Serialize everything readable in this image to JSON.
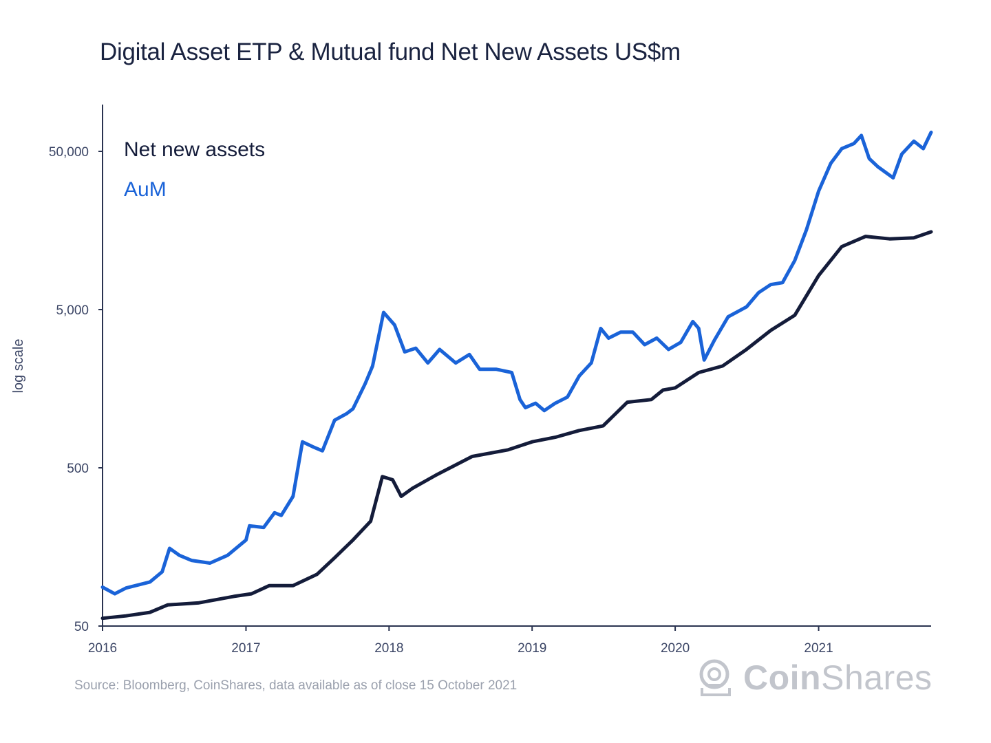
{
  "chart_data": {
    "type": "line",
    "title": "Digital Asset ETP & Mutual fund Net New Assets US$m",
    "ylabel": "log scale",
    "xlabel": "",
    "yscale": "log",
    "ylim": [
      50,
      80000
    ],
    "xlim": [
      "2016-01-01",
      "2021-10-15"
    ],
    "x_ticks": [
      "2016",
      "2017",
      "2018",
      "2019",
      "2020",
      "2021"
    ],
    "y_ticks": [
      {
        "value": 50,
        "label": "50"
      },
      {
        "value": 500,
        "label": "500"
      },
      {
        "value": 5000,
        "label": "5,000"
      },
      {
        "value": 50000,
        "label": "50,000"
      }
    ],
    "legend_placement": "top-left",
    "series": [
      {
        "name": "Net new assets",
        "color": "#141c3a",
        "points": [
          [
            "2016-01-01",
            56
          ],
          [
            "2016-03-01",
            58
          ],
          [
            "2016-05-01",
            61
          ],
          [
            "2016-06-15",
            68
          ],
          [
            "2016-09-01",
            70
          ],
          [
            "2016-12-01",
            77
          ],
          [
            "2017-01-15",
            80
          ],
          [
            "2017-03-01",
            90
          ],
          [
            "2017-05-01",
            90
          ],
          [
            "2017-07-01",
            106
          ],
          [
            "2017-08-15",
            135
          ],
          [
            "2017-10-01",
            175
          ],
          [
            "2017-11-15",
            230
          ],
          [
            "2017-12-15",
            440
          ],
          [
            "2018-01-10",
            420
          ],
          [
            "2018-02-01",
            330
          ],
          [
            "2018-03-01",
            370
          ],
          [
            "2018-05-01",
            450
          ],
          [
            "2018-08-01",
            590
          ],
          [
            "2018-11-01",
            650
          ],
          [
            "2019-01-01",
            730
          ],
          [
            "2019-03-01",
            780
          ],
          [
            "2019-05-01",
            860
          ],
          [
            "2019-07-01",
            920
          ],
          [
            "2019-09-01",
            1300
          ],
          [
            "2019-11-01",
            1350
          ],
          [
            "2019-12-01",
            1550
          ],
          [
            "2020-01-01",
            1600
          ],
          [
            "2020-03-01",
            2000
          ],
          [
            "2020-05-01",
            2200
          ],
          [
            "2020-07-01",
            2800
          ],
          [
            "2020-09-01",
            3700
          ],
          [
            "2020-11-01",
            4600
          ],
          [
            "2021-01-01",
            8200
          ],
          [
            "2021-03-01",
            12500
          ],
          [
            "2021-05-01",
            14500
          ],
          [
            "2021-07-01",
            14000
          ],
          [
            "2021-09-01",
            14200
          ],
          [
            "2021-10-15",
            15500
          ]
        ]
      },
      {
        "name": "AuM",
        "color": "#1a63d8",
        "points": [
          [
            "2016-01-01",
            88
          ],
          [
            "2016-02-01",
            80
          ],
          [
            "2016-03-01",
            87
          ],
          [
            "2016-05-01",
            95
          ],
          [
            "2016-06-01",
            110
          ],
          [
            "2016-06-20",
            155
          ],
          [
            "2016-07-15",
            140
          ],
          [
            "2016-08-15",
            130
          ],
          [
            "2016-10-01",
            125
          ],
          [
            "2016-11-15",
            140
          ],
          [
            "2017-01-01",
            175
          ],
          [
            "2017-01-10",
            215
          ],
          [
            "2017-02-15",
            210
          ],
          [
            "2017-03-15",
            260
          ],
          [
            "2017-04-01",
            250
          ],
          [
            "2017-05-01",
            330
          ],
          [
            "2017-05-25",
            730
          ],
          [
            "2017-06-20",
            680
          ],
          [
            "2017-07-15",
            640
          ],
          [
            "2017-08-15",
            1000
          ],
          [
            "2017-09-15",
            1100
          ],
          [
            "2017-10-01",
            1180
          ],
          [
            "2017-11-01",
            1700
          ],
          [
            "2017-11-20",
            2200
          ],
          [
            "2017-12-18",
            4800
          ],
          [
            "2018-01-15",
            4000
          ],
          [
            "2018-02-10",
            2700
          ],
          [
            "2018-03-10",
            2850
          ],
          [
            "2018-04-10",
            2300
          ],
          [
            "2018-05-10",
            2800
          ],
          [
            "2018-06-20",
            2300
          ],
          [
            "2018-07-25",
            2600
          ],
          [
            "2018-08-20",
            2100
          ],
          [
            "2018-10-01",
            2100
          ],
          [
            "2018-11-10",
            2000
          ],
          [
            "2018-12-01",
            1350
          ],
          [
            "2018-12-15",
            1200
          ],
          [
            "2019-01-10",
            1280
          ],
          [
            "2019-02-01",
            1150
          ],
          [
            "2019-03-01",
            1280
          ],
          [
            "2019-04-01",
            1400
          ],
          [
            "2019-05-01",
            1900
          ],
          [
            "2019-06-01",
            2300
          ],
          [
            "2019-06-25",
            3800
          ],
          [
            "2019-07-15",
            3300
          ],
          [
            "2019-08-15",
            3600
          ],
          [
            "2019-09-15",
            3600
          ],
          [
            "2019-10-15",
            3000
          ],
          [
            "2019-11-15",
            3300
          ],
          [
            "2019-12-15",
            2800
          ],
          [
            "2020-01-15",
            3100
          ],
          [
            "2020-02-15",
            4200
          ],
          [
            "2020-03-01",
            3800
          ],
          [
            "2020-03-15",
            2400
          ],
          [
            "2020-04-10",
            3200
          ],
          [
            "2020-05-15",
            4500
          ],
          [
            "2020-07-01",
            5200
          ],
          [
            "2020-08-01",
            6400
          ],
          [
            "2020-09-01",
            7200
          ],
          [
            "2020-10-01",
            7400
          ],
          [
            "2020-11-01",
            10200
          ],
          [
            "2020-12-01",
            16000
          ],
          [
            "2021-01-01",
            28000
          ],
          [
            "2021-02-01",
            42000
          ],
          [
            "2021-03-01",
            52000
          ],
          [
            "2021-04-01",
            56000
          ],
          [
            "2021-04-20",
            63000
          ],
          [
            "2021-05-10",
            45000
          ],
          [
            "2021-06-01",
            40000
          ],
          [
            "2021-07-10",
            34000
          ],
          [
            "2021-08-01",
            48000
          ],
          [
            "2021-09-01",
            58000
          ],
          [
            "2021-09-25",
            52000
          ],
          [
            "2021-10-15",
            66000
          ]
        ]
      }
    ]
  },
  "footer": {
    "source": "Source: Bloomberg, CoinShares, data available as of close 15 October 2021",
    "brand_coin": "Coin",
    "brand_shares": "Shares",
    "brand_icon": "coinshares-logo-icon"
  },
  "colors": {
    "title": "#1a2340",
    "axis": "#2a3350",
    "net_new_assets": "#141c3a",
    "aum": "#1a63d8",
    "source": "#9aa0ad",
    "brand": "#c2c5cc"
  }
}
